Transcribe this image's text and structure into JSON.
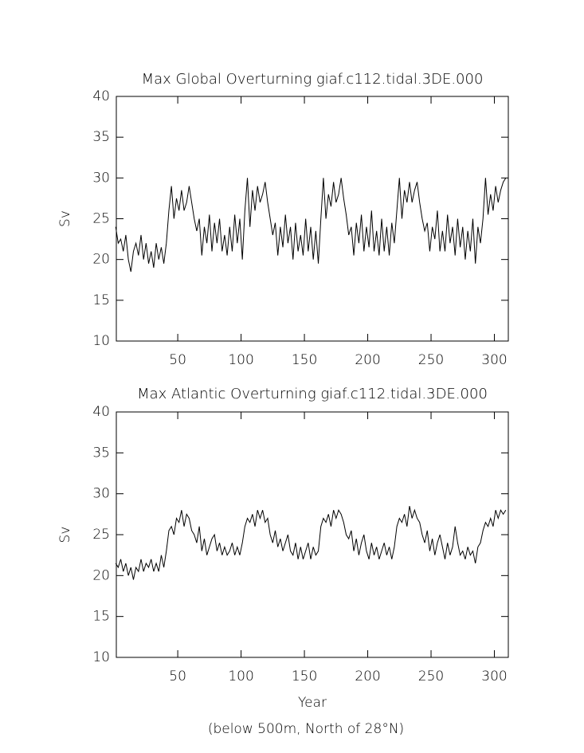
{
  "chart_data": [
    {
      "type": "line",
      "title": "Max Global Overturning giaf.c112.tidal.3DE.000",
      "ylabel": "Sv",
      "x": [
        1,
        3,
        5,
        7,
        9,
        11,
        13,
        15,
        17,
        19,
        21,
        23,
        25,
        27,
        29,
        31,
        33,
        35,
        37,
        39,
        41,
        43,
        45,
        47,
        49,
        51,
        53,
        55,
        57,
        59,
        61,
        63,
        65,
        67,
        69,
        71,
        73,
        75,
        77,
        79,
        81,
        83,
        85,
        87,
        89,
        91,
        93,
        95,
        97,
        99,
        101,
        103,
        105,
        107,
        109,
        111,
        113,
        115,
        117,
        119,
        121,
        123,
        125,
        127,
        129,
        131,
        133,
        135,
        137,
        139,
        141,
        143,
        145,
        147,
        149,
        151,
        153,
        155,
        157,
        159,
        161,
        163,
        165,
        167,
        169,
        171,
        173,
        175,
        177,
        179,
        181,
        183,
        185,
        187,
        189,
        191,
        193,
        195,
        197,
        199,
        201,
        203,
        205,
        207,
        209,
        211,
        213,
        215,
        217,
        219,
        221,
        223,
        225,
        227,
        229,
        231,
        233,
        235,
        237,
        239,
        241,
        243,
        245,
        247,
        249,
        251,
        253,
        255,
        257,
        259,
        261,
        263,
        265,
        267,
        269,
        271,
        273,
        275,
        277,
        279,
        281,
        283,
        285,
        287,
        289,
        291,
        293,
        295,
        297,
        299,
        301,
        303,
        305,
        307,
        309
      ],
      "values": [
        24,
        22,
        22.5,
        21,
        23,
        20,
        18.5,
        21,
        22,
        20.5,
        23,
        20,
        22,
        19.5,
        21,
        19,
        22,
        20,
        21.5,
        19.5,
        22,
        26,
        29,
        25,
        27.5,
        26,
        28.5,
        26,
        27,
        29,
        27,
        25,
        23.5,
        25,
        20.5,
        24,
        22,
        25.5,
        21,
        24.5,
        22,
        25,
        21,
        23,
        20.5,
        24,
        21,
        25.5,
        22,
        25,
        20,
        26,
        30,
        24,
        28.5,
        26,
        29,
        27,
        28,
        29.5,
        27,
        25,
        23,
        24.5,
        20.5,
        24,
        21.5,
        25.5,
        22,
        24,
        20,
        24.5,
        21,
        23,
        20.5,
        25,
        21,
        24,
        20,
        23.5,
        19.5,
        25,
        30,
        25,
        28,
        26.5,
        29.5,
        27,
        28,
        30,
        27.5,
        25.5,
        23,
        24,
        20.5,
        24.5,
        22,
        25.5,
        21,
        24,
        21.5,
        26,
        21,
        23.5,
        20.5,
        25,
        21,
        24,
        20.5,
        24.5,
        22,
        26,
        30,
        25,
        28.5,
        27,
        29.5,
        27,
        28.5,
        29.5,
        27,
        25,
        23.5,
        24.5,
        21,
        24,
        22.5,
        26,
        21,
        23.5,
        21,
        25.5,
        22,
        24,
        20.5,
        25,
        21.5,
        24,
        20,
        23.5,
        21,
        25,
        19.5,
        24,
        22,
        25,
        30,
        25.5,
        28,
        26,
        29,
        27,
        28.5,
        29.5,
        30
      ],
      "color": "#000000",
      "xlim": [
        1.5,
        311
      ],
      "ylim": [
        10,
        40
      ],
      "xticks": [
        50,
        100,
        150,
        200,
        250,
        300
      ],
      "yticks": [
        10,
        15,
        20,
        25,
        30,
        35,
        40
      ]
    },
    {
      "type": "line",
      "title": "Max Atlantic Overturning giaf.c112.tidal.3DE.000",
      "ylabel": "Sv",
      "xlabel": "Year",
      "annotation": "(below 500m, North of 28°N)",
      "x": [
        1,
        3,
        5,
        7,
        9,
        11,
        13,
        15,
        17,
        19,
        21,
        23,
        25,
        27,
        29,
        31,
        33,
        35,
        37,
        39,
        41,
        43,
        45,
        47,
        49,
        51,
        53,
        55,
        57,
        59,
        61,
        63,
        65,
        67,
        69,
        71,
        73,
        75,
        77,
        79,
        81,
        83,
        85,
        87,
        89,
        91,
        93,
        95,
        97,
        99,
        101,
        103,
        105,
        107,
        109,
        111,
        113,
        115,
        117,
        119,
        121,
        123,
        125,
        127,
        129,
        131,
        133,
        135,
        137,
        139,
        141,
        143,
        145,
        147,
        149,
        151,
        153,
        155,
        157,
        159,
        161,
        163,
        165,
        167,
        169,
        171,
        173,
        175,
        177,
        179,
        181,
        183,
        185,
        187,
        189,
        191,
        193,
        195,
        197,
        199,
        201,
        203,
        205,
        207,
        209,
        211,
        213,
        215,
        217,
        219,
        221,
        223,
        225,
        227,
        229,
        231,
        233,
        235,
        237,
        239,
        241,
        243,
        245,
        247,
        249,
        251,
        253,
        255,
        257,
        259,
        261,
        263,
        265,
        267,
        269,
        271,
        273,
        275,
        277,
        279,
        281,
        283,
        285,
        287,
        289,
        291,
        293,
        295,
        297,
        299,
        301,
        303,
        305,
        307,
        309
      ],
      "values": [
        21.5,
        21,
        22,
        20.5,
        21.5,
        20,
        21,
        19.5,
        21,
        20.5,
        22,
        20.5,
        21.5,
        21,
        22,
        20.5,
        21.5,
        20.5,
        22.5,
        21,
        23,
        25.5,
        26,
        25,
        27,
        26.5,
        28,
        26,
        27.5,
        27,
        25.5,
        25,
        24,
        26,
        23,
        24.5,
        22.5,
        23.5,
        24.5,
        25,
        23,
        24,
        22.5,
        23.5,
        22.5,
        23,
        24,
        22.5,
        23.5,
        22.5,
        24,
        26,
        27,
        26.5,
        27.5,
        26,
        28,
        27,
        28,
        26.5,
        27,
        25,
        24,
        25.5,
        23.5,
        24.5,
        23,
        24,
        25,
        23,
        22.5,
        24,
        22,
        23.5,
        22,
        23,
        24,
        22,
        23.5,
        22.5,
        23,
        26,
        27,
        26.5,
        27.5,
        26,
        28,
        27,
        28,
        27.5,
        26.5,
        25,
        24.5,
        25.5,
        23,
        24.5,
        22.5,
        24,
        25,
        23,
        22,
        24,
        22.5,
        23.5,
        22,
        23,
        24,
        22.5,
        23.5,
        22,
        23.5,
        26,
        27,
        26.5,
        27.5,
        26,
        28.5,
        27,
        28,
        27,
        26.5,
        25,
        24,
        25.5,
        23,
        24.5,
        22.5,
        24,
        25,
        23.5,
        22,
        24,
        22.5,
        23.5,
        26,
        24,
        22.5,
        23,
        22,
        23.5,
        22.5,
        23,
        21.5,
        23.5,
        24,
        25.5,
        26.5,
        26,
        27,
        26,
        28,
        27,
        28,
        27.5,
        28
      ],
      "color": "#000000",
      "xlim": [
        1.5,
        311
      ],
      "ylim": [
        10,
        40
      ],
      "xticks": [
        50,
        100,
        150,
        200,
        250,
        300
      ],
      "yticks": [
        10,
        15,
        20,
        25,
        30,
        35,
        40
      ]
    }
  ]
}
